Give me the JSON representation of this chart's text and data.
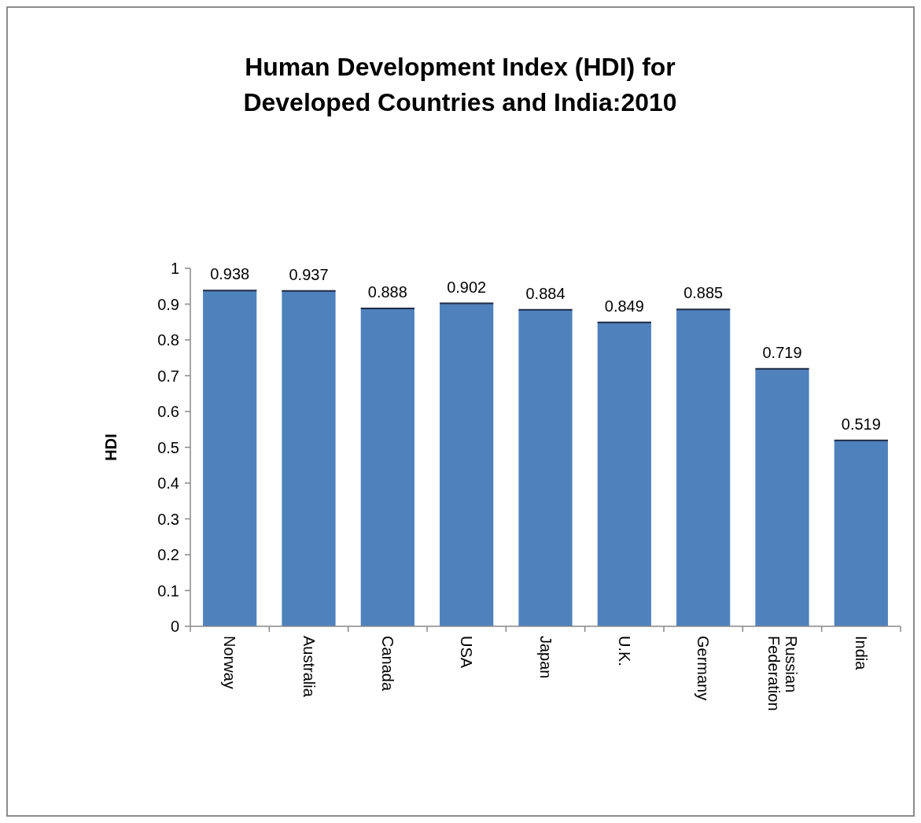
{
  "chart_data": {
    "type": "bar",
    "title": "Human Development Index (HDI) for\nDeveloped Countries and India:2010",
    "ylabel": "HDI",
    "categories": [
      "Norway",
      "Australia",
      "Canada",
      "USA",
      "Japan",
      "U.K.",
      "Germany",
      "Russian Federation",
      "India"
    ],
    "values": [
      0.938,
      0.937,
      0.888,
      0.902,
      0.884,
      0.849,
      0.885,
      0.719,
      0.519
    ],
    "color": "#4f81bd",
    "ylim": [
      0,
      1
    ],
    "yticks": [
      0,
      0.1,
      0.2,
      0.3,
      0.4,
      0.5,
      0.6,
      0.7,
      0.8,
      0.9,
      1
    ],
    "data_labels": true,
    "grid": false
  }
}
